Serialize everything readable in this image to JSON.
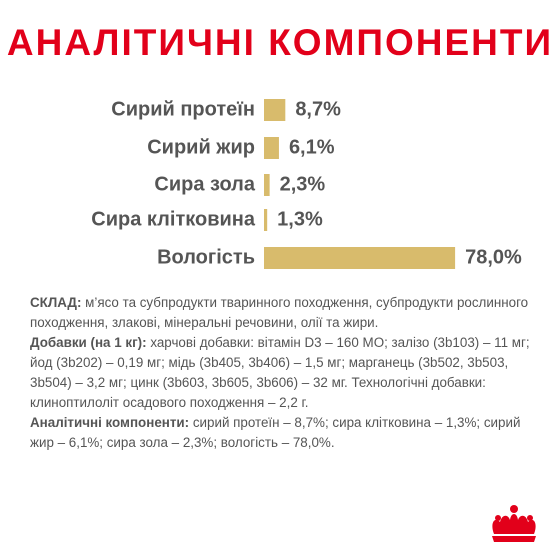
{
  "chart_data": {
    "type": "bar",
    "orientation": "horizontal",
    "title": "АНАЛІТИЧНІ КОМПОНЕНТИ",
    "categories": [
      "Сирий протеїн",
      "Сирий жир",
      "Сира зола",
      "Сира клітковина",
      "Вологість"
    ],
    "values": [
      8.7,
      6.1,
      2.3,
      1.3,
      78.0
    ],
    "value_labels": [
      "8,7%",
      "6,1%",
      "2,3%",
      "1,3%",
      "78,0%"
    ],
    "color": "#d8bb6c"
  },
  "composition": [
    {
      "label": "СКЛАД:",
      "text": "м’ясо та субпродукти тваринного походження, субпродукти рослинного походження, злакові, мінеральні речовини, олії та жири."
    },
    {
      "label": "Добавки (на 1 кг):",
      "text": "харчові добавки: вітамін D3 – 160 МО; залізо (3b103) – 11 мг; йод (3b202) – 0,19 мг; мідь (3b405, 3b406) – 1,5 мг; марганець (3b502, 3b503, 3b504) – 3,2 мг; цинк (3b603, 3b605, 3b606) – 32 мг. Технологічні добавки: клиноптилоліт осадового походження – 2,2 г."
    },
    {
      "label": "Аналітичні компоненти:",
      "text": "сирий протеїн – 8,7%; сира клітковина – 1,3%; сирий жир – 6,1%; сира зола – 2,3%; вологість – 78,0%."
    }
  ]
}
